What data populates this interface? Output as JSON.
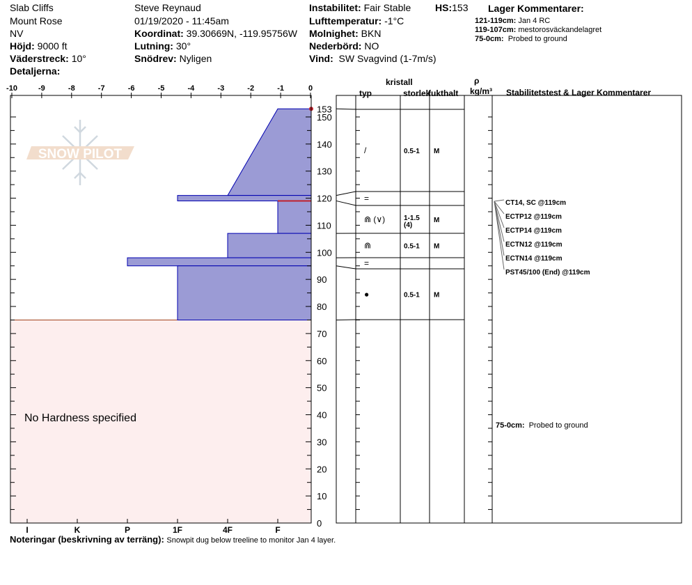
{
  "header": {
    "location": "Slab Cliffs",
    "range": "Mount Rose",
    "state": "NV",
    "elevation_label": "Höjd:",
    "elevation": "9000 ft",
    "aspect_label": "Väderstreck:",
    "aspect": "10°",
    "details_label": "Detaljerna:",
    "observer": "Steve Reynaud",
    "datetime": "01/19/2020 - 11:45am",
    "coord_label": "Koordinat:",
    "coord": "39.30669N, -119.95756W",
    "slope_label": "Lutning:",
    "slope": "30°",
    "drift_label": "Snödrev:",
    "drift": "Nyligen",
    "instability_label": "Instabilitet:",
    "instability": "Fair Stable",
    "hs_label": "HS:",
    "hs": "153",
    "airtemp_label": "Lufttemperatur:",
    "airtemp": "-1°C",
    "sky_label": "Molnighet:",
    "sky": "BKN",
    "precip_label": "Nederbörd:",
    "precip": "NO",
    "wind_label": "Vind:",
    "wind": "SW Svagvind (1-7m/s)",
    "layer_comments_title": "Lager Kommentarer:",
    "layer_comments": [
      {
        "range": "121-119cm:",
        "text": "Jan 4 RC"
      },
      {
        "range": "119-107cm:",
        "text": "mestorosväckandelagret"
      },
      {
        "range": "75-0cm:",
        "text": "Probed to ground"
      }
    ]
  },
  "table_headers": {
    "crystal": "kristall",
    "type": "typ",
    "size": "storlek",
    "moisture": "fukthalt",
    "rho": "ρ",
    "density": "kg/m³",
    "stability": "Stabilitetstest & Lager Kommentarer"
  },
  "logo_text": "SNOW PILOT",
  "no_hardness": "No Hardness specified",
  "footer": {
    "label": "Noteringar (beskrivning av terräng):",
    "text": "Snowpit dug below treeline to monitor Jan 4 layer."
  },
  "colors": {
    "layer_fill": "#9b9bd5",
    "layer_stroke": "#0000b0",
    "no_hardness_fill": "#fdeeee",
    "failure": "#c0202a"
  },
  "chart_data": {
    "type": "snow-profile",
    "temp_axis": {
      "ticks": [
        "-10",
        "-9",
        "-8",
        "-7",
        "-6",
        "-5",
        "-4",
        "-3",
        "-2",
        "-1",
        "0"
      ],
      "range": [
        -10,
        0
      ]
    },
    "height_axis": {
      "range": [
        0,
        153
      ],
      "ticks": [
        "0",
        "10",
        "20",
        "30",
        "40",
        "50",
        "60",
        "70",
        "80",
        "90",
        "100",
        "110",
        "120",
        "130",
        "140",
        "150"
      ],
      "top_label": "153"
    },
    "hardness_axis": [
      "I",
      "K",
      "P",
      "1F",
      "4F",
      "F"
    ],
    "layers": [
      {
        "top": 153,
        "bottom": 121,
        "hardness_top": "F",
        "hardness_bottom": "4F",
        "type": "/",
        "size": "0.5-1",
        "moisture": "M"
      },
      {
        "top": 121,
        "bottom": 119,
        "hardness_top": "1F",
        "hardness_bottom": "1F",
        "type": "=",
        "size": "",
        "moisture": ""
      },
      {
        "top": 119,
        "bottom": 107,
        "hardness_top": "F",
        "hardness_bottom": "F",
        "type": "⋒ (∨)",
        "size": "1-1.5",
        "size2": "(4)",
        "moisture": "M"
      },
      {
        "top": 107,
        "bottom": 98,
        "hardness_top": "4F",
        "hardness_bottom": "4F",
        "type": "⋒",
        "size": "0.5-1",
        "moisture": "M"
      },
      {
        "top": 98,
        "bottom": 95,
        "hardness_top": "P",
        "hardness_bottom": "P",
        "type": "=",
        "size": "",
        "moisture": ""
      },
      {
        "top": 95,
        "bottom": 75,
        "hardness_top": "1F",
        "hardness_bottom": "1F",
        "type": "●",
        "size": "0.5-1",
        "moisture": "M"
      }
    ],
    "failure_height": 119,
    "stability_tests": [
      "CT14, SC @119cm",
      "ECTP12 @119cm",
      "ECTP14 @119cm",
      "ECTN12 @119cm",
      "ECTN14 @119cm",
      "PST45/100 (End) @119cm"
    ],
    "bottom_comment": {
      "range": "75-0cm:",
      "text": "Probed to ground"
    }
  }
}
